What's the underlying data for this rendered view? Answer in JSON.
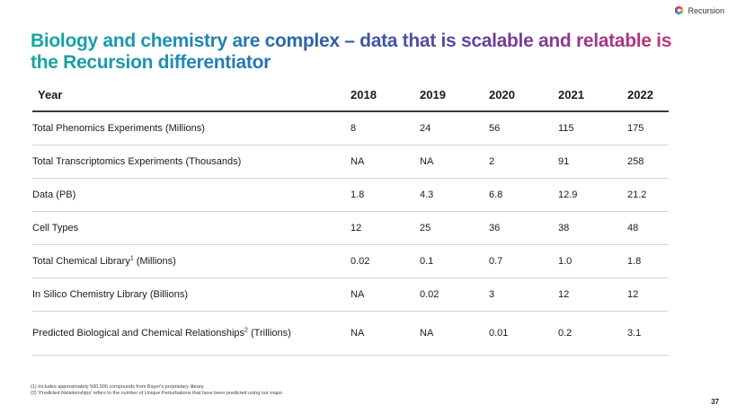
{
  "brand": {
    "name": "Recursion"
  },
  "title": "Biology and chemistry are complex – data that is scalable and relatable is the Recursion differentiator",
  "table": {
    "header_label": "Year",
    "years": [
      "2018",
      "2019",
      "2020",
      "2021",
      "2022"
    ],
    "rows": [
      {
        "label": "Total Phenomics Experiments (Millions)",
        "label_sup": "",
        "label_suffix": "",
        "values": [
          "8",
          "24",
          "56",
          "115",
          "175"
        ]
      },
      {
        "label": "Total Transcriptomics Experiments (Thousands)",
        "label_sup": "",
        "label_suffix": "",
        "values": [
          "NA",
          "NA",
          "2",
          "91",
          "258"
        ]
      },
      {
        "label": "Data (PB)",
        "label_sup": "",
        "label_suffix": "",
        "values": [
          "1.8",
          "4.3",
          "6.8",
          "12.9",
          "21.2"
        ]
      },
      {
        "label": "Cell Types",
        "label_sup": "",
        "label_suffix": "",
        "values": [
          "12",
          "25",
          "36",
          "38",
          "48"
        ]
      },
      {
        "label": "Total Chemical Library",
        "label_sup": "1",
        "label_suffix": " (Millions)",
        "values": [
          "0.02",
          "0.1",
          "0.7",
          "1.0",
          "1.8"
        ]
      },
      {
        "label": "In Silico Chemistry Library (Billions)",
        "label_sup": "",
        "label_suffix": "",
        "values": [
          "NA",
          "0.02",
          "3",
          "12",
          "12"
        ]
      },
      {
        "label": "Predicted Biological and Chemical Relationships",
        "label_sup": "2",
        "label_suffix": " (Trillions)",
        "values": [
          "NA",
          "NA",
          "0.01",
          "0.2",
          "3.1"
        ]
      }
    ]
  },
  "footnotes": [
    "(1) Includes approximately 500,000 compounds from Bayer's proprietary library.",
    "(2) 'Predicted Relationships' refers to the number of Unique Perturbations that have been predicted using our maps."
  ],
  "page_number": "37",
  "colors": {
    "title_gradient": [
      "#13a6a0",
      "#2d5fa8",
      "#6a3f9c",
      "#c2347a"
    ],
    "logo": [
      "#e94e3c",
      "#f6a623",
      "#3bb273",
      "#2f7fd1",
      "#8e44ad"
    ]
  }
}
